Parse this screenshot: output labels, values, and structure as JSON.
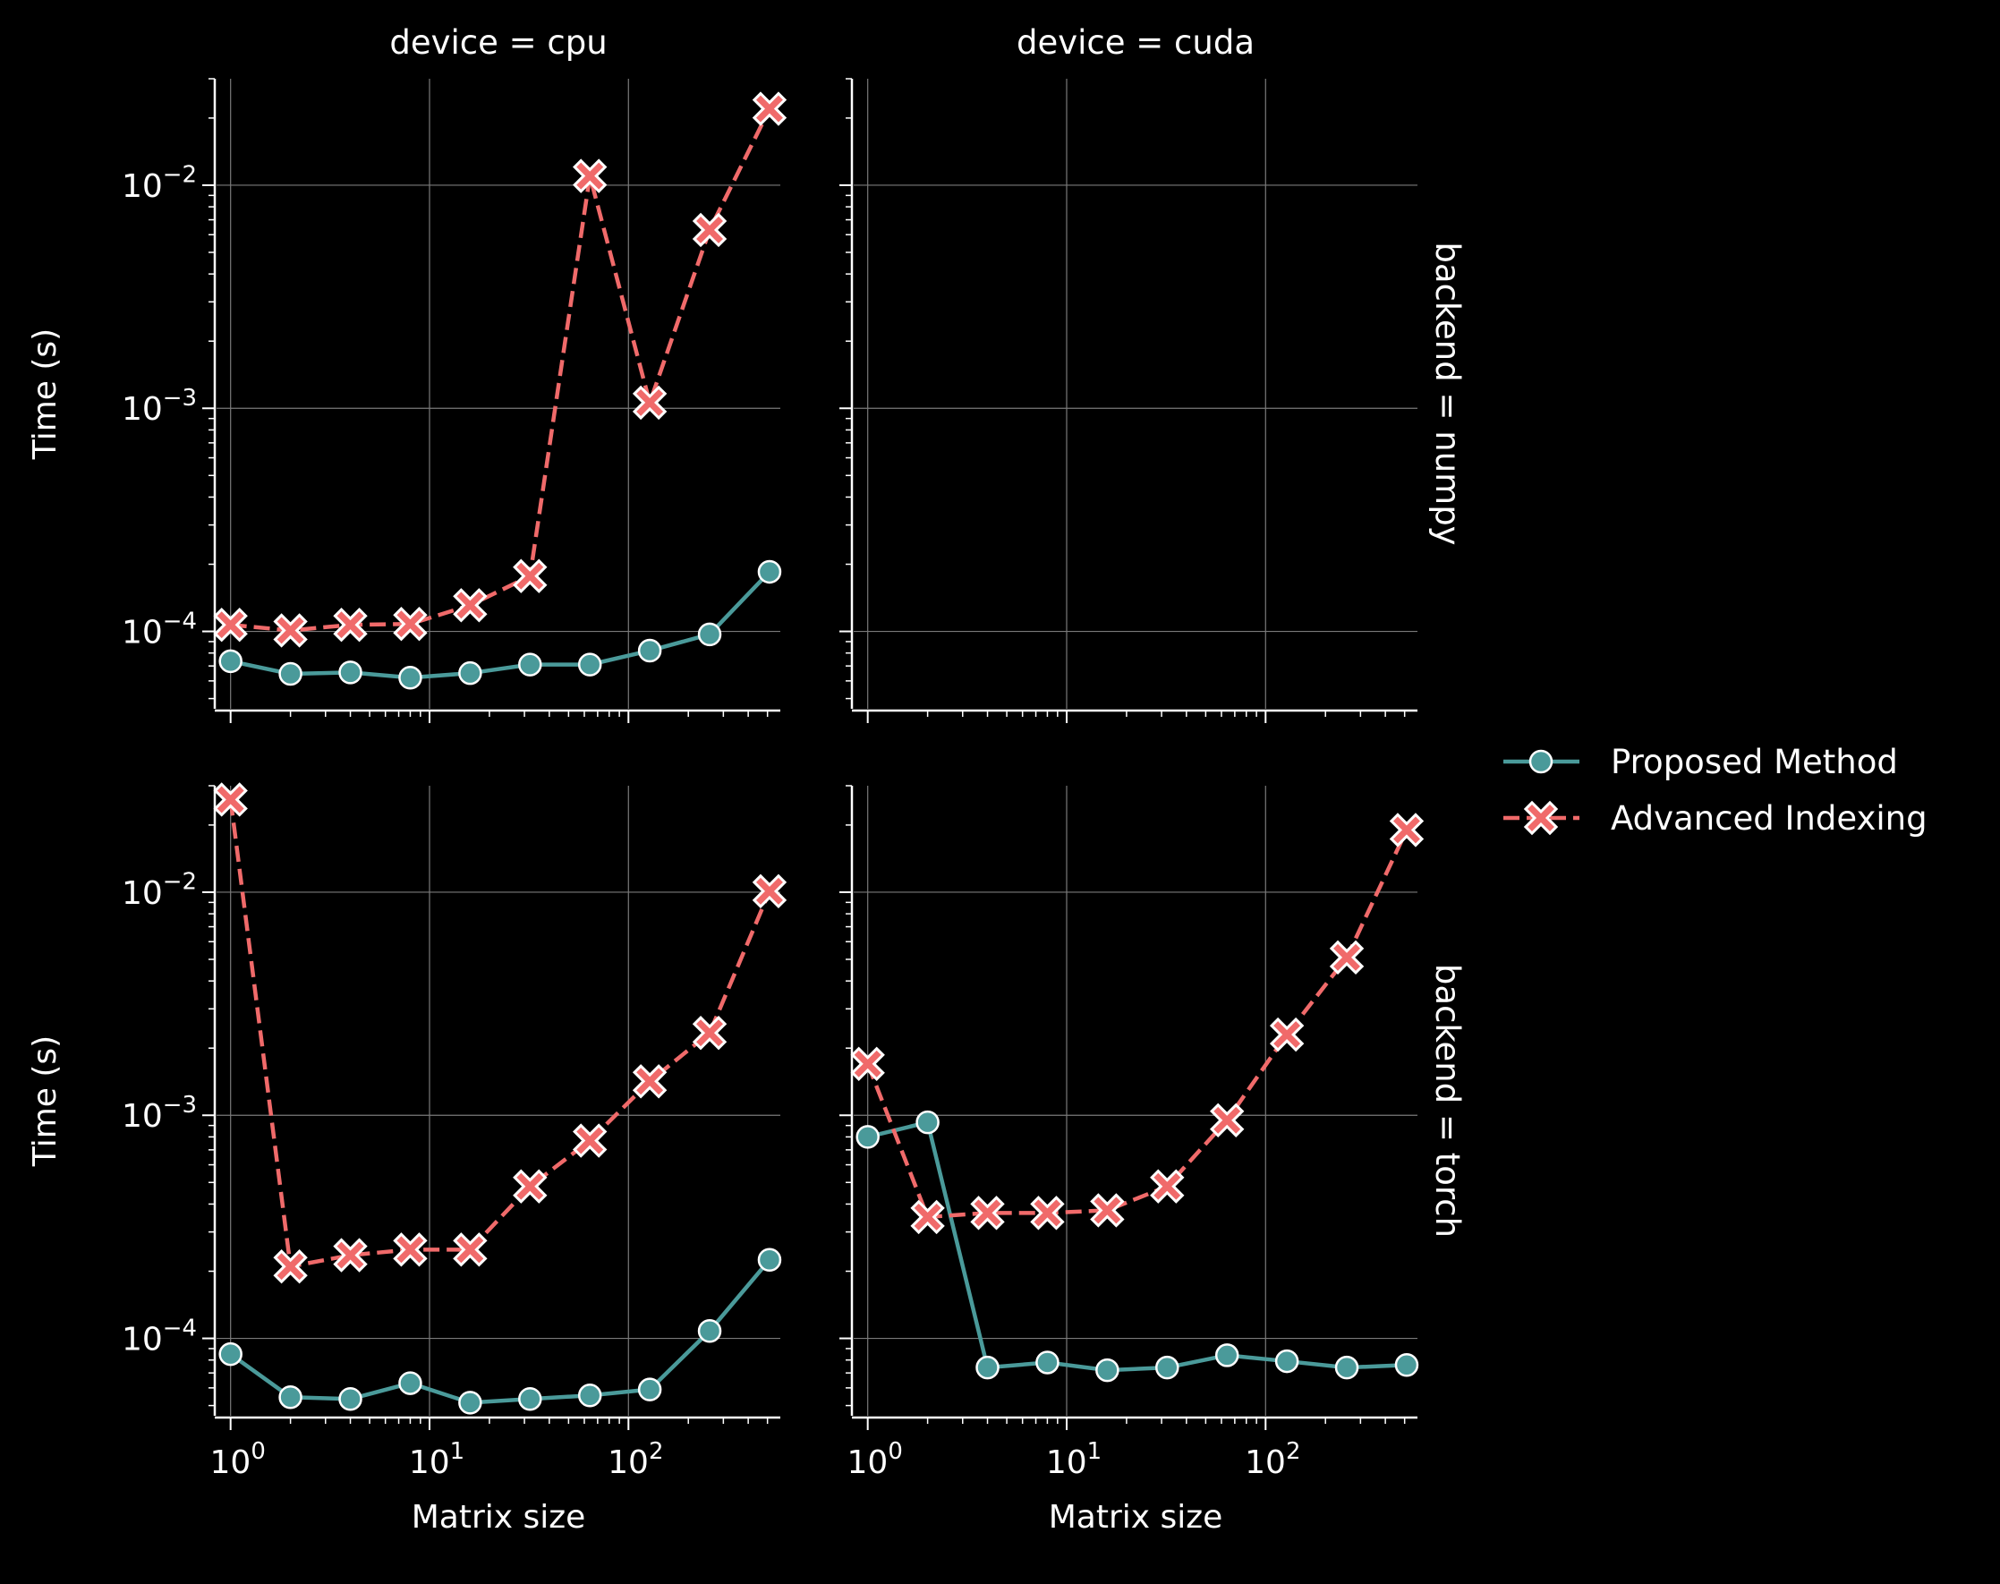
{
  "colors": {
    "background": "#000000",
    "foreground": "#ffffff",
    "grid": "#7a7a7a",
    "proposed": "#4a9a9a",
    "advanced": "#f06a6a",
    "marker_edge": "#ffffff"
  },
  "legend": {
    "placement": "right-center",
    "items": [
      {
        "label": "Proposed Method",
        "marker": "circle",
        "line": "solid",
        "color": "#4a9a9a"
      },
      {
        "label": "Advanced Indexing",
        "marker": "x",
        "line": "dashed",
        "color": "#f06a6a"
      }
    ]
  },
  "chart_data": {
    "type": "line",
    "x_scale": "log",
    "y_scale": "log",
    "xlabel": "Matrix size",
    "ylabel": "Time (s)",
    "xlim": [
      0.85,
      580
    ],
    "ylim": [
      4.5e-05,
      0.03
    ],
    "x_ticks": [
      1,
      10,
      100
    ],
    "x_tick_labels": [
      {
        "base": "10",
        "exp": "0"
      },
      {
        "base": "10",
        "exp": "1"
      },
      {
        "base": "10",
        "exp": "2"
      }
    ],
    "y_ticks": [
      0.0001,
      0.001,
      0.01
    ],
    "y_tick_labels": [
      {
        "base": "10",
        "exp": "−4"
      },
      {
        "base": "10",
        "exp": "−3"
      },
      {
        "base": "10",
        "exp": "−2"
      }
    ],
    "grid": true,
    "x": [
      1,
      2,
      4,
      8,
      16,
      32,
      64,
      128,
      256,
      512
    ],
    "columns": [
      "device = cpu",
      "device = cuda"
    ],
    "rows": [
      "backend = numpy",
      "backend = torch"
    ],
    "panels": [
      {
        "device": "cpu",
        "backend": "numpy",
        "series": [
          {
            "name": "Proposed Method",
            "values": [
              7.35e-05,
              6.45e-05,
              6.55e-05,
              6.2e-05,
              6.5e-05,
              7.1e-05,
              7.1e-05,
              8.2e-05,
              9.7e-05,
              0.000185
            ]
          },
          {
            "name": "Advanced Indexing",
            "values": [
              0.000107,
              0.000101,
              0.000107,
              0.000108,
              0.000131,
              0.000177,
              0.011,
              0.00106,
              0.0063,
              0.022
            ]
          }
        ]
      },
      {
        "device": "cuda",
        "backend": "numpy",
        "series": []
      },
      {
        "device": "cpu",
        "backend": "torch",
        "series": [
          {
            "name": "Proposed Method",
            "values": [
              8.5e-05,
              5.45e-05,
              5.35e-05,
              6.3e-05,
              5.15e-05,
              5.35e-05,
              5.55e-05,
              5.9e-05,
              0.000108,
              0.000225
            ]
          },
          {
            "name": "Advanced Indexing",
            "values": [
              0.026,
              0.00021,
              0.000236,
              0.00025,
              0.00025,
              0.00048,
              0.00077,
              0.00142,
              0.00234,
              0.0101
            ]
          }
        ]
      },
      {
        "device": "cuda",
        "backend": "torch",
        "series": [
          {
            "name": "Proposed Method",
            "values": [
              0.0008,
              0.00093,
              7.4e-05,
              7.8e-05,
              7.2e-05,
              7.4e-05,
              8.4e-05,
              7.9e-05,
              7.4e-05,
              7.6e-05
            ]
          },
          {
            "name": "Advanced Indexing",
            "values": [
              0.0017,
              0.00035,
              0.000365,
              0.000365,
              0.000375,
              0.00048,
              0.00095,
              0.0023,
              0.0051,
              0.019
            ]
          }
        ]
      }
    ]
  }
}
